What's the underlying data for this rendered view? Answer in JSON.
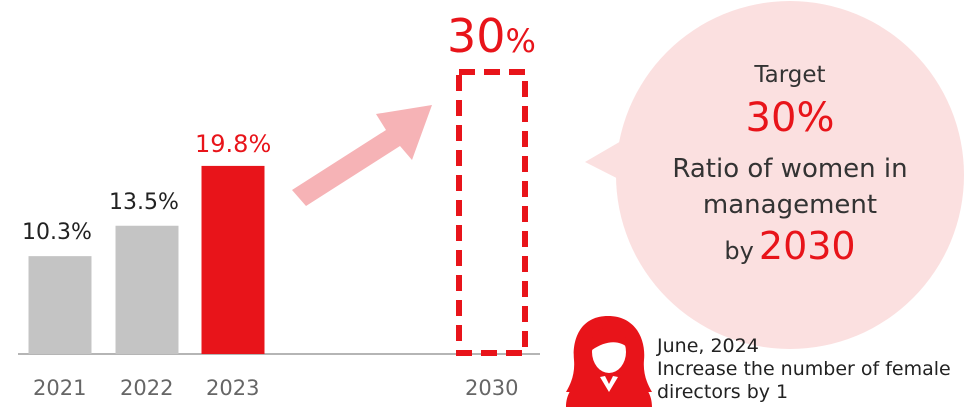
{
  "chart_data": {
    "type": "bar",
    "categories": [
      "2021",
      "2022",
      "2023",
      "2030"
    ],
    "values": [
      10.3,
      13.5,
      19.8,
      30
    ],
    "value_labels": [
      "10.3%",
      "13.5%",
      "19.8%",
      "30%"
    ],
    "target_category": "2030",
    "highlight_category": "2023",
    "ylim": [
      0,
      30
    ],
    "grid": false,
    "legend": "none"
  },
  "colors": {
    "past_bar": "#c4c4c4",
    "highlight_bar": "#e8141a",
    "target_outline": "#e8141a",
    "arrow": "#f6b3b6",
    "bubble": "#fbe0e0",
    "axis": "#b5b5b5"
  },
  "target_bubble": {
    "label": "Target",
    "value": "30%",
    "line1": "Ratio of women in",
    "line2": "management",
    "by_word": "by",
    "year": "2030"
  },
  "note": {
    "icon": "female-person-icon",
    "date": "June, 2024",
    "text_line1": "Increase the number of female",
    "text_line2": "directors by 1"
  }
}
